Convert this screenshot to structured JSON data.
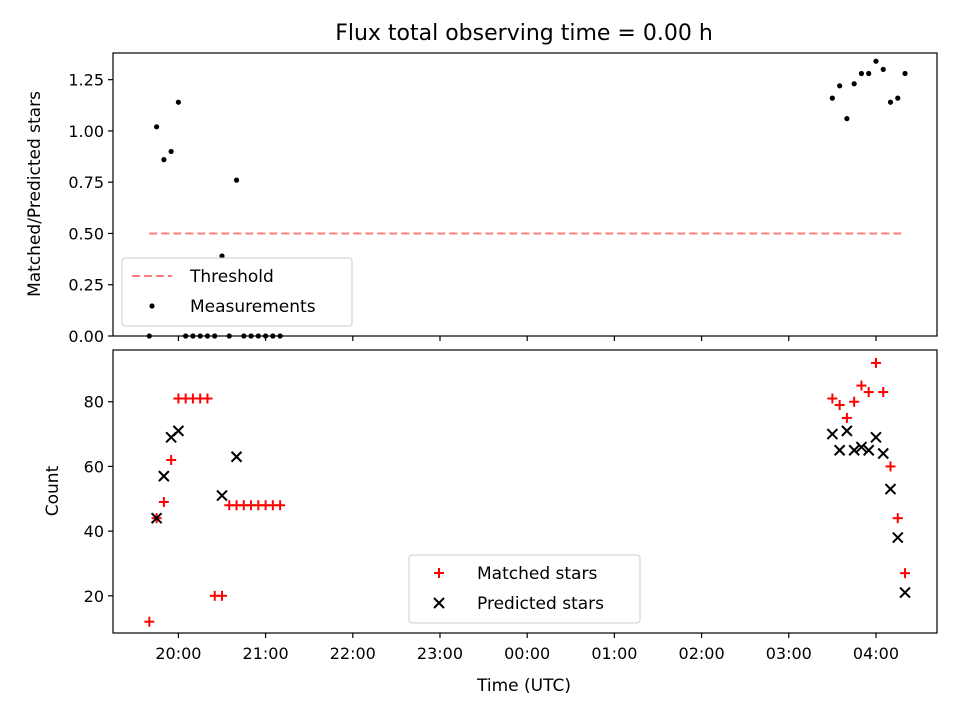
{
  "chart_data": [
    {
      "type": "scatter",
      "title": "Flux total observing time = 0.00 h",
      "ylabel": "Matched/Predicted stars",
      "xlabel": "",
      "ylim": [
        0,
        1.38
      ],
      "yticks": [
        "0.00",
        "0.25",
        "0.50",
        "0.75",
        "1.00",
        "1.25"
      ],
      "yticks_values": [
        0,
        0.25,
        0.5,
        0.75,
        1.0,
        1.25
      ],
      "legend_position": "lower-left",
      "series": [
        {
          "name": "Threshold",
          "style": "dashed-line",
          "color": "#ff7f7f",
          "x": [
            "19:40",
            "04:20"
          ],
          "y": [
            0.5,
            0.5
          ]
        },
        {
          "name": "Measurements",
          "style": "dot",
          "color": "#000000",
          "x": [
            "19:40",
            "19:45",
            "19:50",
            "19:55",
            "20:00",
            "20:05",
            "20:10",
            "20:15",
            "20:20",
            "20:25",
            "20:30",
            "20:35",
            "20:40",
            "20:45",
            "20:50",
            "20:55",
            "21:00",
            "21:05",
            "21:10",
            "03:30",
            "03:35",
            "03:40",
            "03:45",
            "03:50",
            "03:55",
            "04:00",
            "04:05",
            "04:10",
            "04:15",
            "04:20"
          ],
          "y": [
            0.0,
            1.02,
            0.86,
            0.9,
            1.14,
            0.0,
            0.0,
            0.0,
            0.0,
            0.0,
            0.39,
            0.0,
            0.76,
            0.0,
            0.0,
            0.0,
            0.0,
            0.0,
            0.0,
            1.16,
            1.22,
            1.06,
            1.23,
            1.28,
            1.28,
            1.34,
            1.3,
            1.14,
            1.16,
            1.28
          ]
        }
      ]
    },
    {
      "type": "scatter",
      "title": "",
      "ylabel": "Count",
      "xlabel": "Time (UTC)",
      "ylim": [
        8.5,
        96
      ],
      "yticks": [
        "20",
        "40",
        "60",
        "80"
      ],
      "yticks_values": [
        20,
        40,
        60,
        80
      ],
      "xticks": [
        "20:00",
        "21:00",
        "22:00",
        "23:00",
        "00:00",
        "01:00",
        "02:00",
        "03:00",
        "04:00"
      ],
      "legend_position": "lower-center",
      "series": [
        {
          "name": "Matched stars",
          "marker": "plus",
          "color": "#ff0000",
          "x": [
            "19:40",
            "19:45",
            "19:50",
            "19:55",
            "20:00",
            "20:05",
            "20:10",
            "20:15",
            "20:20",
            "20:25",
            "20:30",
            "20:35",
            "20:40",
            "20:45",
            "20:50",
            "20:55",
            "21:00",
            "21:05",
            "21:10",
            "03:30",
            "03:35",
            "03:40",
            "03:45",
            "03:50",
            "03:55",
            "04:00",
            "04:05",
            "04:10",
            "04:15",
            "04:20"
          ],
          "y": [
            12,
            44,
            49,
            62,
            81,
            81,
            81,
            81,
            81,
            20,
            20,
            48,
            48,
            48,
            48,
            48,
            48,
            48,
            48,
            81,
            79,
            75,
            80,
            85,
            83,
            92,
            83,
            60,
            44,
            27
          ]
        },
        {
          "name": "Predicted stars",
          "marker": "x",
          "color": "#000000",
          "x": [
            "19:45",
            "19:50",
            "19:55",
            "20:00",
            "20:30",
            "20:40",
            "03:30",
            "03:35",
            "03:40",
            "03:45",
            "03:50",
            "03:55",
            "04:00",
            "04:05",
            "04:10",
            "04:15",
            "04:20"
          ],
          "y": [
            44,
            57,
            69,
            71,
            51,
            63,
            70,
            65,
            71,
            65,
            66,
            65,
            69,
            64,
            53,
            38,
            21
          ]
        }
      ]
    }
  ]
}
